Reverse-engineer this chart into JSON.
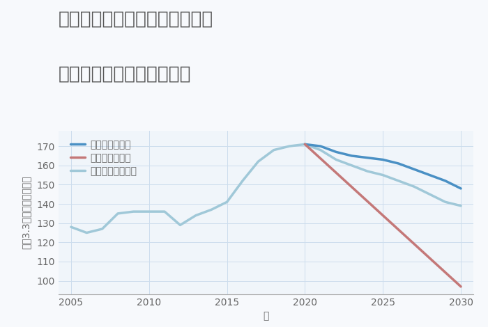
{
  "title_line1": "愛知県名古屋市昭和区川原通の",
  "title_line2": "中古マンションの価格推移",
  "xlabel": "年",
  "ylabel": "坪（3.3㎡）単価（万円）",
  "background_color": "#f7f9fc",
  "plot_bg_color": "#f0f5fa",
  "grid_color": "#ccdded",
  "years_historical": [
    2005,
    2006,
    2007,
    2008,
    2009,
    2010,
    2011,
    2012,
    2013,
    2014,
    2015,
    2016,
    2017,
    2018,
    2019,
    2020
  ],
  "values_historical": [
    128,
    125,
    127,
    135,
    136,
    136,
    136,
    129,
    134,
    137,
    141,
    152,
    162,
    168,
    170,
    171
  ],
  "good_years": [
    2020,
    2021,
    2022,
    2023,
    2024,
    2025,
    2026,
    2027,
    2028,
    2029,
    2030
  ],
  "good_values": [
    171,
    170,
    167,
    165,
    164,
    163,
    161,
    158,
    155,
    152,
    148
  ],
  "bad_years": [
    2020,
    2025,
    2030
  ],
  "bad_values": [
    171,
    134,
    97
  ],
  "normal_years": [
    2020,
    2021,
    2022,
    2023,
    2024,
    2025,
    2026,
    2027,
    2028,
    2029,
    2030
  ],
  "normal_values": [
    171,
    168,
    163,
    160,
    157,
    155,
    152,
    149,
    145,
    141,
    139
  ],
  "good_color": "#4a90c4",
  "bad_color": "#c47878",
  "normal_color": "#a0c8d8",
  "ylim": [
    93,
    178
  ],
  "xlim": [
    2004.2,
    2030.8
  ],
  "yticks": [
    100,
    110,
    120,
    130,
    140,
    150,
    160,
    170
  ],
  "xticks": [
    2005,
    2010,
    2015,
    2020,
    2025,
    2030
  ],
  "legend_labels": [
    "グッドシナリオ",
    "バッドシナリオ",
    "ノーマルシナリオ"
  ],
  "title_fontsize": 19,
  "label_fontsize": 10,
  "tick_fontsize": 10,
  "legend_fontsize": 10,
  "line_width": 2.5
}
